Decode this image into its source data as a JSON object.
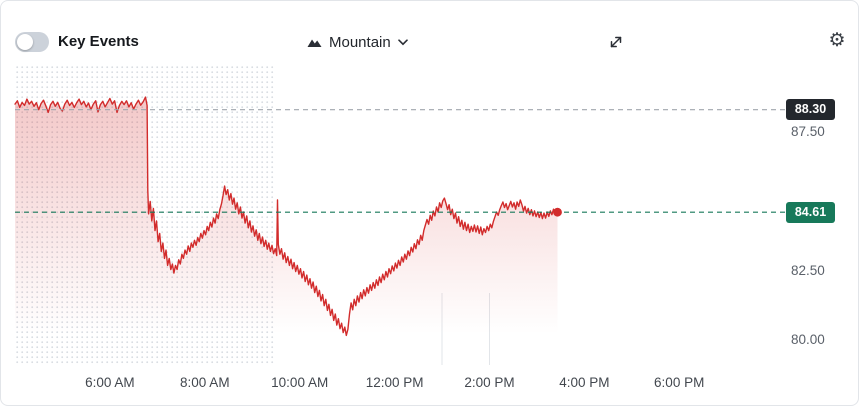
{
  "toolbar": {
    "key_events_label": "Key Events",
    "key_events_on": false,
    "chart_type_label": "Mountain",
    "settings_glyph": "⚙",
    "icons": [
      "key-events-toggle",
      "mountain-icon",
      "chevron-down-icon",
      "expand-icon",
      "gear-icon"
    ]
  },
  "colors": {
    "line": "#d22c2c",
    "fill_top": "rgba(210,44,44,0.26)",
    "fill_bottom": "rgba(210,44,44,0)",
    "prev_close_line": "#a0a6ad",
    "prev_close_badge": "#23272d",
    "current_line": "#17795a",
    "current_badge": "#17795a",
    "badge_text": "#ffffff",
    "dots": "#d7dbe1",
    "grid": "#e2e5e9"
  },
  "chart_data": {
    "type": "area",
    "x_unit": "minutes-of-day",
    "x_range": [
      240,
      1215
    ],
    "ylim": [
      79.08,
      89.87
    ],
    "market_open_minute": 570,
    "session_vlines": [
      780,
      840
    ],
    "x_ticks": [
      {
        "minute": 360,
        "label": "6:00 AM"
      },
      {
        "minute": 480,
        "label": "8:00 AM"
      },
      {
        "minute": 600,
        "label": "10:00 AM"
      },
      {
        "minute": 720,
        "label": "12:00 PM"
      },
      {
        "minute": 840,
        "label": "2:00 PM"
      },
      {
        "minute": 960,
        "label": "4:00 PM"
      },
      {
        "minute": 1080,
        "label": "6:00 PM"
      }
    ],
    "y_ticks": [
      {
        "value": 87.5,
        "label": "87.50"
      },
      {
        "value": 82.5,
        "label": "82.50"
      },
      {
        "value": 80.0,
        "label": "80.00"
      }
    ],
    "prev_close": {
      "value": 88.3,
      "label": "88.30"
    },
    "current": {
      "value": 84.61,
      "label": "84.61"
    },
    "points": [
      [
        240,
        88.5
      ],
      [
        243,
        88.62
      ],
      [
        246,
        88.38
      ],
      [
        249,
        88.56
      ],
      [
        252,
        88.45
      ],
      [
        255,
        88.68
      ],
      [
        258,
        88.5
      ],
      [
        261,
        88.6
      ],
      [
        264,
        88.42
      ],
      [
        267,
        88.55
      ],
      [
        270,
        88.3
      ],
      [
        273,
        88.52
      ],
      [
        276,
        88.64
      ],
      [
        279,
        88.44
      ],
      [
        282,
        88.2
      ],
      [
        285,
        88.48
      ],
      [
        288,
        88.6
      ],
      [
        291,
        88.42
      ],
      [
        294,
        88.56
      ],
      [
        297,
        88.35
      ],
      [
        300,
        88.25
      ],
      [
        303,
        88.5
      ],
      [
        306,
        88.64
      ],
      [
        309,
        88.45
      ],
      [
        312,
        88.56
      ],
      [
        315,
        88.38
      ],
      [
        318,
        88.55
      ],
      [
        321,
        88.68
      ],
      [
        324,
        88.48
      ],
      [
        327,
        88.6
      ],
      [
        330,
        88.4
      ],
      [
        333,
        88.54
      ],
      [
        336,
        88.3
      ],
      [
        339,
        88.5
      ],
      [
        342,
        88.62
      ],
      [
        345,
        88.22
      ],
      [
        348,
        88.48
      ],
      [
        351,
        88.6
      ],
      [
        354,
        88.4
      ],
      [
        357,
        88.55
      ],
      [
        360,
        88.7
      ],
      [
        363,
        88.5
      ],
      [
        366,
        88.62
      ],
      [
        369,
        88.2
      ],
      [
        372,
        88.45
      ],
      [
        375,
        88.6
      ],
      [
        378,
        88.48
      ],
      [
        381,
        88.62
      ],
      [
        384,
        88.4
      ],
      [
        387,
        88.55
      ],
      [
        390,
        88.32
      ],
      [
        393,
        88.5
      ],
      [
        396,
        88.64
      ],
      [
        399,
        88.46
      ],
      [
        402,
        88.58
      ],
      [
        405,
        88.75
      ],
      [
        406,
        88.6
      ],
      [
        407,
        88.45
      ],
      [
        408,
        85.4
      ],
      [
        409,
        84.55
      ],
      [
        411,
        85.0
      ],
      [
        413,
        84.3
      ],
      [
        415,
        84.75
      ],
      [
        417,
        83.95
      ],
      [
        419,
        84.3
      ],
      [
        421,
        83.55
      ],
      [
        423,
        83.85
      ],
      [
        425,
        83.2
      ],
      [
        427,
        83.5
      ],
      [
        429,
        82.95
      ],
      [
        431,
        83.25
      ],
      [
        433,
        82.7
      ],
      [
        435,
        82.95
      ],
      [
        437,
        82.55
      ],
      [
        439,
        82.75
      ],
      [
        441,
        82.42
      ],
      [
        443,
        82.7
      ],
      [
        445,
        82.55
      ],
      [
        447,
        82.9
      ],
      [
        449,
        82.75
      ],
      [
        451,
        83.1
      ],
      [
        453,
        82.95
      ],
      [
        455,
        83.25
      ],
      [
        457,
        83.1
      ],
      [
        459,
        83.4
      ],
      [
        461,
        83.2
      ],
      [
        463,
        83.5
      ],
      [
        465,
        83.35
      ],
      [
        467,
        83.6
      ],
      [
        469,
        83.42
      ],
      [
        471,
        83.7
      ],
      [
        473,
        83.55
      ],
      [
        475,
        83.85
      ],
      [
        477,
        83.68
      ],
      [
        479,
        83.95
      ],
      [
        481,
        83.8
      ],
      [
        483,
        84.1
      ],
      [
        485,
        83.95
      ],
      [
        487,
        84.25
      ],
      [
        489,
        84.08
      ],
      [
        491,
        84.4
      ],
      [
        493,
        84.22
      ],
      [
        495,
        84.55
      ],
      [
        497,
        84.38
      ],
      [
        499,
        84.7
      ],
      [
        501,
        84.9
      ],
      [
        503,
        85.2
      ],
      [
        505,
        85.55
      ],
      [
        507,
        85.25
      ],
      [
        509,
        85.42
      ],
      [
        511,
        85.05
      ],
      [
        513,
        85.28
      ],
      [
        515,
        84.9
      ],
      [
        517,
        85.12
      ],
      [
        519,
        84.72
      ],
      [
        521,
        84.95
      ],
      [
        523,
        84.55
      ],
      [
        525,
        84.8
      ],
      [
        527,
        84.4
      ],
      [
        529,
        84.62
      ],
      [
        531,
        84.22
      ],
      [
        533,
        84.48
      ],
      [
        535,
        84.05
      ],
      [
        537,
        84.3
      ],
      [
        539,
        83.9
      ],
      [
        541,
        84.12
      ],
      [
        543,
        83.75
      ],
      [
        545,
        83.98
      ],
      [
        547,
        83.6
      ],
      [
        549,
        83.85
      ],
      [
        551,
        83.48
      ],
      [
        553,
        83.72
      ],
      [
        555,
        83.38
      ],
      [
        557,
        83.6
      ],
      [
        559,
        83.28
      ],
      [
        561,
        83.5
      ],
      [
        563,
        83.2
      ],
      [
        565,
        83.42
      ],
      [
        567,
        83.12
      ],
      [
        569,
        83.3
      ],
      [
        571,
        83.05
      ],
      [
        572,
        85.05
      ],
      [
        573,
        83.45
      ],
      [
        575,
        83.1
      ],
      [
        577,
        83.3
      ],
      [
        579,
        82.92
      ],
      [
        581,
        83.15
      ],
      [
        583,
        82.8
      ],
      [
        585,
        83.02
      ],
      [
        587,
        82.7
      ],
      [
        589,
        82.92
      ],
      [
        591,
        82.58
      ],
      [
        593,
        82.8
      ],
      [
        595,
        82.48
      ],
      [
        597,
        82.7
      ],
      [
        599,
        82.38
      ],
      [
        601,
        82.58
      ],
      [
        603,
        82.25
      ],
      [
        605,
        82.48
      ],
      [
        607,
        82.12
      ],
      [
        609,
        82.35
      ],
      [
        611,
        82.0
      ],
      [
        613,
        82.22
      ],
      [
        615,
        81.88
      ],
      [
        617,
        82.1
      ],
      [
        619,
        81.72
      ],
      [
        621,
        81.95
      ],
      [
        623,
        81.58
      ],
      [
        625,
        81.8
      ],
      [
        627,
        81.42
      ],
      [
        629,
        81.65
      ],
      [
        631,
        81.25
      ],
      [
        633,
        81.48
      ],
      [
        635,
        81.08
      ],
      [
        637,
        81.3
      ],
      [
        639,
        80.9
      ],
      [
        641,
        81.12
      ],
      [
        643,
        80.72
      ],
      [
        645,
        80.95
      ],
      [
        647,
        80.55
      ],
      [
        649,
        80.78
      ],
      [
        651,
        80.42
      ],
      [
        653,
        80.62
      ],
      [
        655,
        80.28
      ],
      [
        657,
        80.48
      ],
      [
        659,
        80.18
      ],
      [
        661,
        80.4
      ],
      [
        663,
        80.95
      ],
      [
        665,
        81.35
      ],
      [
        667,
        81.1
      ],
      [
        669,
        81.48
      ],
      [
        671,
        81.25
      ],
      [
        673,
        81.6
      ],
      [
        675,
        81.38
      ],
      [
        677,
        81.72
      ],
      [
        679,
        81.5
      ],
      [
        681,
        81.82
      ],
      [
        683,
        81.6
      ],
      [
        685,
        81.9
      ],
      [
        687,
        81.7
      ],
      [
        689,
        82.0
      ],
      [
        691,
        81.8
      ],
      [
        693,
        82.08
      ],
      [
        695,
        81.88
      ],
      [
        697,
        82.18
      ],
      [
        699,
        81.98
      ],
      [
        701,
        82.28
      ],
      [
        703,
        82.08
      ],
      [
        705,
        82.38
      ],
      [
        707,
        82.18
      ],
      [
        709,
        82.48
      ],
      [
        711,
        82.28
      ],
      [
        713,
        82.58
      ],
      [
        715,
        82.4
      ],
      [
        717,
        82.68
      ],
      [
        719,
        82.5
      ],
      [
        721,
        82.78
      ],
      [
        723,
        82.6
      ],
      [
        725,
        82.88
      ],
      [
        727,
        82.7
      ],
      [
        729,
        83.0
      ],
      [
        731,
        82.82
      ],
      [
        733,
        83.1
      ],
      [
        735,
        82.92
      ],
      [
        737,
        83.22
      ],
      [
        739,
        83.05
      ],
      [
        741,
        83.35
      ],
      [
        743,
        83.18
      ],
      [
        745,
        83.48
      ],
      [
        747,
        83.3
      ],
      [
        749,
        83.62
      ],
      [
        751,
        83.45
      ],
      [
        753,
        83.78
      ],
      [
        755,
        83.6
      ],
      [
        757,
        83.95
      ],
      [
        759,
        84.15
      ],
      [
        761,
        84.35
      ],
      [
        763,
        84.18
      ],
      [
        765,
        84.5
      ],
      [
        767,
        84.32
      ],
      [
        769,
        84.65
      ],
      [
        771,
        84.48
      ],
      [
        773,
        84.8
      ],
      [
        775,
        84.62
      ],
      [
        777,
        84.95
      ],
      [
        779,
        84.78
      ],
      [
        781,
        85.02
      ],
      [
        783,
        85.12
      ],
      [
        785,
        84.92
      ],
      [
        787,
        84.7
      ],
      [
        789,
        84.88
      ],
      [
        791,
        84.52
      ],
      [
        793,
        84.72
      ],
      [
        795,
        84.38
      ],
      [
        797,
        84.58
      ],
      [
        799,
        84.22
      ],
      [
        801,
        84.45
      ],
      [
        803,
        84.1
      ],
      [
        805,
        84.32
      ],
      [
        807,
        84.0
      ],
      [
        809,
        84.25
      ],
      [
        811,
        83.95
      ],
      [
        813,
        84.18
      ],
      [
        815,
        83.88
      ],
      [
        817,
        84.1
      ],
      [
        819,
        83.92
      ],
      [
        821,
        84.15
      ],
      [
        823,
        83.9
      ],
      [
        825,
        84.12
      ],
      [
        827,
        83.85
      ],
      [
        829,
        84.08
      ],
      [
        831,
        83.8
      ],
      [
        833,
        84.02
      ],
      [
        835,
        83.88
      ],
      [
        837,
        84.1
      ],
      [
        839,
        83.95
      ],
      [
        841,
        84.18
      ],
      [
        843,
        84.05
      ],
      [
        845,
        84.28
      ],
      [
        847,
        84.45
      ],
      [
        849,
        84.62
      ],
      [
        851,
        84.5
      ],
      [
        853,
        84.7
      ],
      [
        855,
        84.85
      ],
      [
        857,
        84.98
      ],
      [
        859,
        84.78
      ],
      [
        861,
        84.92
      ],
      [
        863,
        84.7
      ],
      [
        865,
        84.85
      ],
      [
        867,
        85.0
      ],
      [
        869,
        84.8
      ],
      [
        871,
        84.95
      ],
      [
        873,
        84.72
      ],
      [
        875,
        84.98
      ],
      [
        877,
        84.82
      ],
      [
        879,
        85.05
      ],
      [
        881,
        84.88
      ],
      [
        883,
        84.65
      ],
      [
        885,
        84.82
      ],
      [
        887,
        84.58
      ],
      [
        889,
        84.75
      ],
      [
        891,
        84.52
      ],
      [
        893,
        84.7
      ],
      [
        895,
        84.48
      ],
      [
        897,
        84.66
      ],
      [
        899,
        84.45
      ],
      [
        901,
        84.62
      ],
      [
        903,
        84.42
      ],
      [
        905,
        84.6
      ],
      [
        907,
        84.38
      ],
      [
        909,
        84.58
      ],
      [
        911,
        84.4
      ],
      [
        913,
        84.62
      ],
      [
        915,
        84.46
      ],
      [
        917,
        84.66
      ],
      [
        919,
        84.52
      ],
      [
        921,
        84.72
      ],
      [
        923,
        84.56
      ],
      [
        925,
        84.68
      ],
      [
        926,
        84.61
      ]
    ]
  }
}
